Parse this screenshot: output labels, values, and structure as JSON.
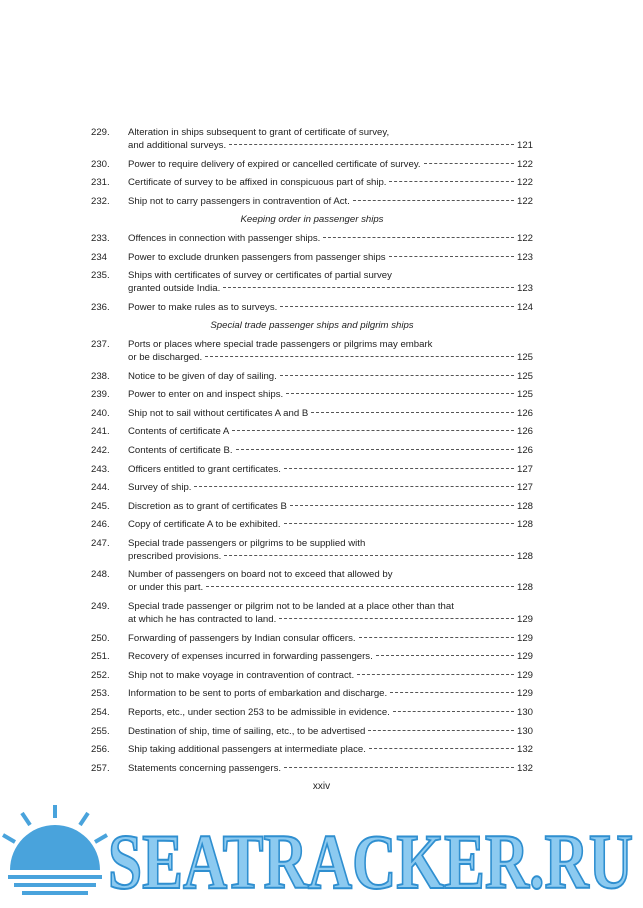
{
  "entries": [
    {
      "number": "229.",
      "lines": [
        "Alteration in ships subsequent to grant of certificate of survey,",
        "and additional surveys."
      ],
      "page": "121"
    },
    {
      "number": "230.",
      "lines": [
        "Power to require delivery of expired or cancelled certificate of survey."
      ],
      "page": "122"
    },
    {
      "number": "231.",
      "lines": [
        "Certificate of survey to be affixed in conspicuous part of ship."
      ],
      "page": "122"
    },
    {
      "number": "232.",
      "lines": [
        "Ship not to carry passengers in contravention of Act."
      ],
      "page": "122"
    },
    {
      "heading": "Keeping order in passenger ships"
    },
    {
      "number": "233.",
      "lines": [
        "Offences in connection with passenger ships."
      ],
      "page": "122"
    },
    {
      "number": "234",
      "lines": [
        "Power to exclude drunken passengers from passenger ships"
      ],
      "page": "123"
    },
    {
      "number": "235.",
      "lines": [
        "Ships with certificates of survey or certificates of partial survey",
        "granted outside India."
      ],
      "page": "123"
    },
    {
      "number": "236.",
      "lines": [
        "Power to make rules as to surveys."
      ],
      "page": "124"
    },
    {
      "heading": "Special trade passenger ships and pilgrim ships"
    },
    {
      "number": "237.",
      "lines": [
        "Ports or places where special trade passengers or pilgrims may embark",
        "or be discharged."
      ],
      "page": "125"
    },
    {
      "number": "238.",
      "lines": [
        "Notice to be given of day of sailing."
      ],
      "page": "125"
    },
    {
      "number": "239.",
      "lines": [
        "Power to enter on and inspect ships."
      ],
      "page": "125"
    },
    {
      "number": "240.",
      "lines": [
        "Ship not to sail without certificates A and B"
      ],
      "page": "126"
    },
    {
      "number": "241.",
      "lines": [
        "Contents of certificate A"
      ],
      "page": "126"
    },
    {
      "number": "242.",
      "lines": [
        "Contents of certificate B."
      ],
      "page": "126"
    },
    {
      "number": "243.",
      "lines": [
        "Officers entitled to grant certificates."
      ],
      "page": "127"
    },
    {
      "number": "244.",
      "lines": [
        "Survey of ship."
      ],
      "page": "127"
    },
    {
      "number": "245.",
      "lines": [
        "Discretion as to grant of certificates B"
      ],
      "page": "128"
    },
    {
      "number": "246.",
      "lines": [
        "Copy of certificate A to be exhibited."
      ],
      "page": "128"
    },
    {
      "number": "247.",
      "lines": [
        "Special trade passengers or pilgrims to be supplied with",
        "prescribed provisions."
      ],
      "page": "128"
    },
    {
      "number": "248.",
      "lines": [
        "Number of passengers on board not to exceed that allowed by",
        "or under this part."
      ],
      "page": "128"
    },
    {
      "number": "249.",
      "lines": [
        "Special trade passenger or pilgrim not to be landed at a place other than that",
        "at which he has contracted to land."
      ],
      "page": "129"
    },
    {
      "number": "250.",
      "lines": [
        "Forwarding of passengers by Indian consular officers."
      ],
      "page": "129"
    },
    {
      "number": "251.",
      "lines": [
        "Recovery of expenses incurred in forwarding passengers."
      ],
      "page": "129"
    },
    {
      "number": "252.",
      "lines": [
        "Ship not to make voyage in contravention of contract."
      ],
      "page": "129"
    },
    {
      "number": "253.",
      "lines": [
        "Information to be sent to ports of embarkation and discharge."
      ],
      "page": "129"
    },
    {
      "number": "254.",
      "lines": [
        "Reports, etc., under section 253 to be admissible in evidence."
      ],
      "page": "130"
    },
    {
      "number": "255.",
      "lines": [
        "Destination of ship, time of sailing, etc., to be advertised"
      ],
      "page": "130"
    },
    {
      "number": "256.",
      "lines": [
        "Ship taking additional passengers at intermediate place."
      ],
      "page": "132"
    },
    {
      "number": "257.",
      "lines": [
        "Statements concerning passengers."
      ],
      "page": "132"
    }
  ],
  "footer": {
    "page_number": "xxiv"
  },
  "watermark": "SEATRACKER.RU"
}
